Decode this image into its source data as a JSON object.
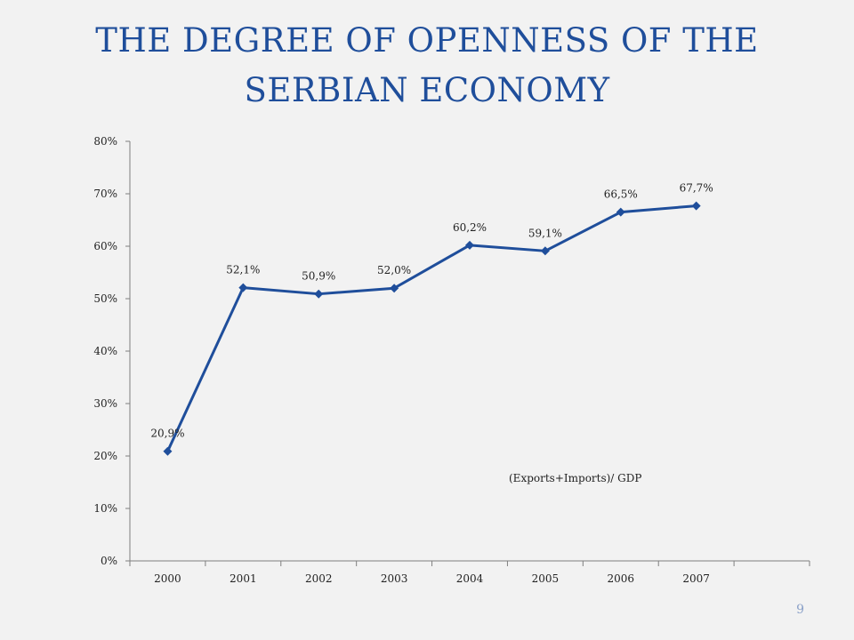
{
  "slide": {
    "title": "THE DEGREE OF OPENNESS OF THE SERBIAN ECONOMY",
    "page_number": "9"
  },
  "colors": {
    "title": "#1f4e9b",
    "series": "#1f4e9b",
    "axis": "#7f7f7f",
    "background": "#f2f2f2"
  },
  "chart_data": {
    "type": "line",
    "title": "",
    "xlabel": "",
    "ylabel": "",
    "categories": [
      "2000",
      "2001",
      "2002",
      "2003",
      "2004",
      "2005",
      "2006",
      "2007"
    ],
    "empty_trailing_category": true,
    "series": [
      {
        "values": [
          20.9,
          52.1,
          50.9,
          52.0,
          60.2,
          59.1,
          66.5,
          67.7
        ],
        "data_labels": [
          "20,9%",
          "52,1%",
          "50,9%",
          "52,0%",
          "60,2%",
          "59,1%",
          "66,5%",
          "67,7%"
        ],
        "marker": "diamond"
      }
    ],
    "ylim": [
      0,
      80
    ],
    "yticks": [
      0,
      10,
      20,
      30,
      40,
      50,
      60,
      70,
      80
    ],
    "ytick_labels": [
      "0%",
      "10%",
      "20%",
      "30%",
      "40%",
      "50%",
      "60%",
      "70%",
      "80%"
    ],
    "annotation": "(Exports+Imports)/ GDP",
    "grid": false,
    "legend": "none"
  }
}
